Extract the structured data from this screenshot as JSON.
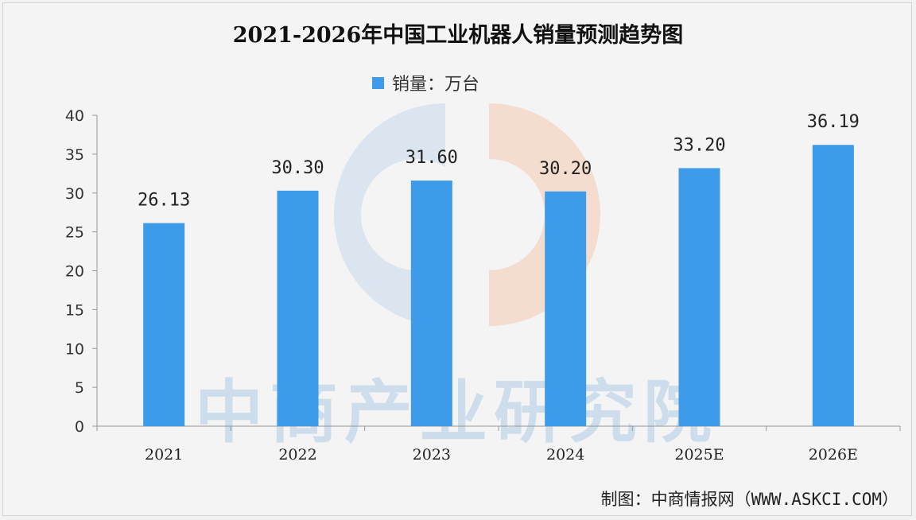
{
  "title": "2021-2026年中国工业机器人销量预测趋势图",
  "legend": {
    "label": "销量：万台"
  },
  "source": "制图：中商情报网（WWW.ASKCI.COM）",
  "watermark": "中商产业研究院",
  "colors": {
    "bar": "#3d9be9",
    "axis": "#999999"
  },
  "chart_data": {
    "type": "bar",
    "title": "2021-2026年中国工业机器人销量预测趋势图",
    "xlabel": "",
    "ylabel": "",
    "categories": [
      "2021",
      "2022",
      "2023",
      "2024",
      "2025E",
      "2026E"
    ],
    "series": [
      {
        "name": "销量：万台",
        "values": [
          26.13,
          30.3,
          31.6,
          30.2,
          33.2,
          36.19
        ]
      }
    ],
    "data_labels": [
      "26.13",
      "30.30",
      "31.60",
      "30.20",
      "33.20",
      "36.19"
    ],
    "ylim": [
      0,
      40
    ],
    "yticks": [
      0,
      5,
      10,
      15,
      20,
      25,
      30,
      35,
      40
    ],
    "grid": false,
    "legend_position": "top-center"
  }
}
